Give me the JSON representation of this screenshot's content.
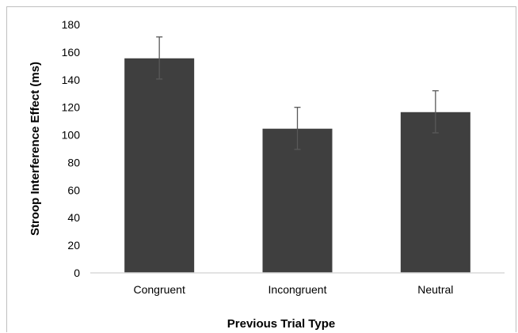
{
  "chart_data": {
    "type": "bar",
    "title": "",
    "xlabel": "Previous Trial Type",
    "ylabel": "Stroop Interference Effect (ms)",
    "categories": [
      "Congruent",
      "Incongruent",
      "Neutral"
    ],
    "values": [
      155.5,
      104.5,
      116.5
    ],
    "error_bars": [
      [
        140.5,
        171
      ],
      [
        89.5,
        120
      ],
      [
        101.5,
        132
      ]
    ],
    "ylim": [
      0,
      180
    ],
    "yticks": [
      0,
      20,
      40,
      60,
      80,
      100,
      120,
      140,
      160,
      180
    ],
    "grid": false,
    "legend": "none",
    "bar_color": "#3f3f3f",
    "error_bar_color": "#595959",
    "axis_color": "#d9d9d9"
  }
}
